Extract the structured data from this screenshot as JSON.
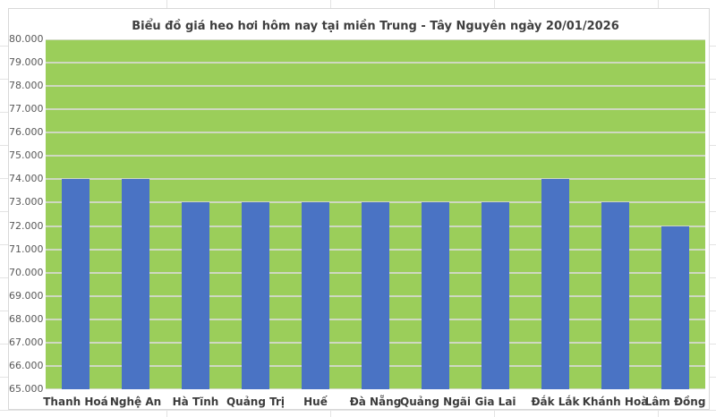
{
  "chart_title": "Biểu đồ giá heo hơi hôm nay tại miền Trung - Tây Nguyên ngày 20/01/2026",
  "chart_data": {
    "type": "bar",
    "title": "Biểu đồ giá heo hơi hôm nay tại miền Trung - Tây Nguyên ngày 20/01/2026",
    "categories": [
      "Thanh Hoá",
      "Nghệ An",
      "Hà Tĩnh",
      "Quảng Trị",
      "Huế",
      "Đà Nẵng",
      "Quảng Ngãi",
      "Gia Lai",
      "Đắk Lắk",
      "Khánh Hoà",
      "Lâm Đồng"
    ],
    "values": [
      74000,
      74000,
      73000,
      73000,
      73000,
      73000,
      73000,
      73000,
      74000,
      73000,
      72000
    ],
    "xlabel": "",
    "ylabel": "",
    "y_axis": {
      "min": 65000,
      "max": 80000,
      "step": 1000,
      "tick_labels": [
        "80.000",
        "79.000",
        "78.000",
        "77.000",
        "76.000",
        "75.000",
        "74.000",
        "73.000",
        "72.000",
        "71.000",
        "70.000",
        "69.000",
        "68.000",
        "67.000",
        "66.000",
        "65.000"
      ]
    },
    "grid": true,
    "legend": "none",
    "colors": {
      "bar": "#4a73c4",
      "plot_background": "#9bce5a",
      "gridline": "#cfd8c2",
      "title_text": "#3f3f3f",
      "y_tick_text": "#595959",
      "x_tick_text": "#3c3c3c",
      "chart_border": "#d8d8d8"
    }
  }
}
